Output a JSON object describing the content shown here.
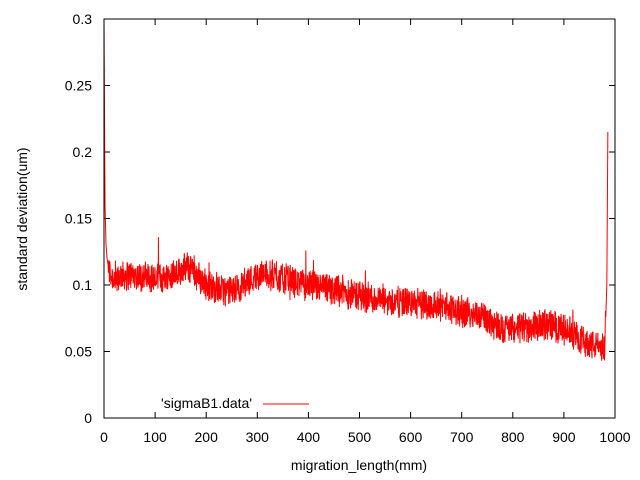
{
  "chart_data": {
    "type": "line",
    "title": "",
    "xlabel": "migration_length(mm)",
    "ylabel": "standard deviation(um)",
    "xlim": [
      0,
      1000
    ],
    "ylim": [
      0,
      0.3
    ],
    "x_ticks": [
      0,
      100,
      200,
      300,
      400,
      500,
      600,
      700,
      800,
      900,
      1000
    ],
    "x_tick_labels": [
      "0",
      "100",
      "200",
      "300",
      "400",
      "500",
      "600",
      "700",
      "800",
      "900",
      "1000"
    ],
    "y_ticks": [
      0,
      0.05,
      0.1,
      0.15,
      0.2,
      0.25,
      0.3
    ],
    "y_tick_labels": [
      "0",
      "0.05",
      "0.1",
      "0.15",
      "0.2",
      "0.25",
      "0.3"
    ],
    "grid": false,
    "legend_position": "bottom-left",
    "series": [
      {
        "name": "'sigmaB1.data'",
        "color": "#ff0000",
        "x": [
          0,
          2,
          4,
          6,
          10,
          20,
          40,
          60,
          80,
          100,
          120,
          140,
          160,
          170,
          180,
          200,
          220,
          240,
          260,
          280,
          300,
          320,
          340,
          360,
          380,
          400,
          420,
          440,
          460,
          480,
          500,
          520,
          540,
          560,
          580,
          600,
          620,
          640,
          660,
          680,
          700,
          720,
          740,
          760,
          780,
          800,
          820,
          840,
          860,
          880,
          900,
          920,
          940,
          960,
          980,
          984,
          986
        ],
        "y": [
          0.3,
          0.16,
          0.13,
          0.12,
          0.11,
          0.105,
          0.108,
          0.107,
          0.106,
          0.105,
          0.106,
          0.11,
          0.113,
          0.112,
          0.108,
          0.1,
          0.098,
          0.095,
          0.097,
          0.103,
          0.107,
          0.108,
          0.106,
          0.104,
          0.102,
          0.1,
          0.098,
          0.097,
          0.096,
          0.094,
          0.092,
          0.09,
          0.089,
          0.088,
          0.087,
          0.087,
          0.086,
          0.085,
          0.084,
          0.082,
          0.08,
          0.079,
          0.077,
          0.072,
          0.068,
          0.067,
          0.068,
          0.07,
          0.071,
          0.069,
          0.066,
          0.063,
          0.058,
          0.055,
          0.052,
          0.1,
          0.215
        ]
      }
    ]
  }
}
